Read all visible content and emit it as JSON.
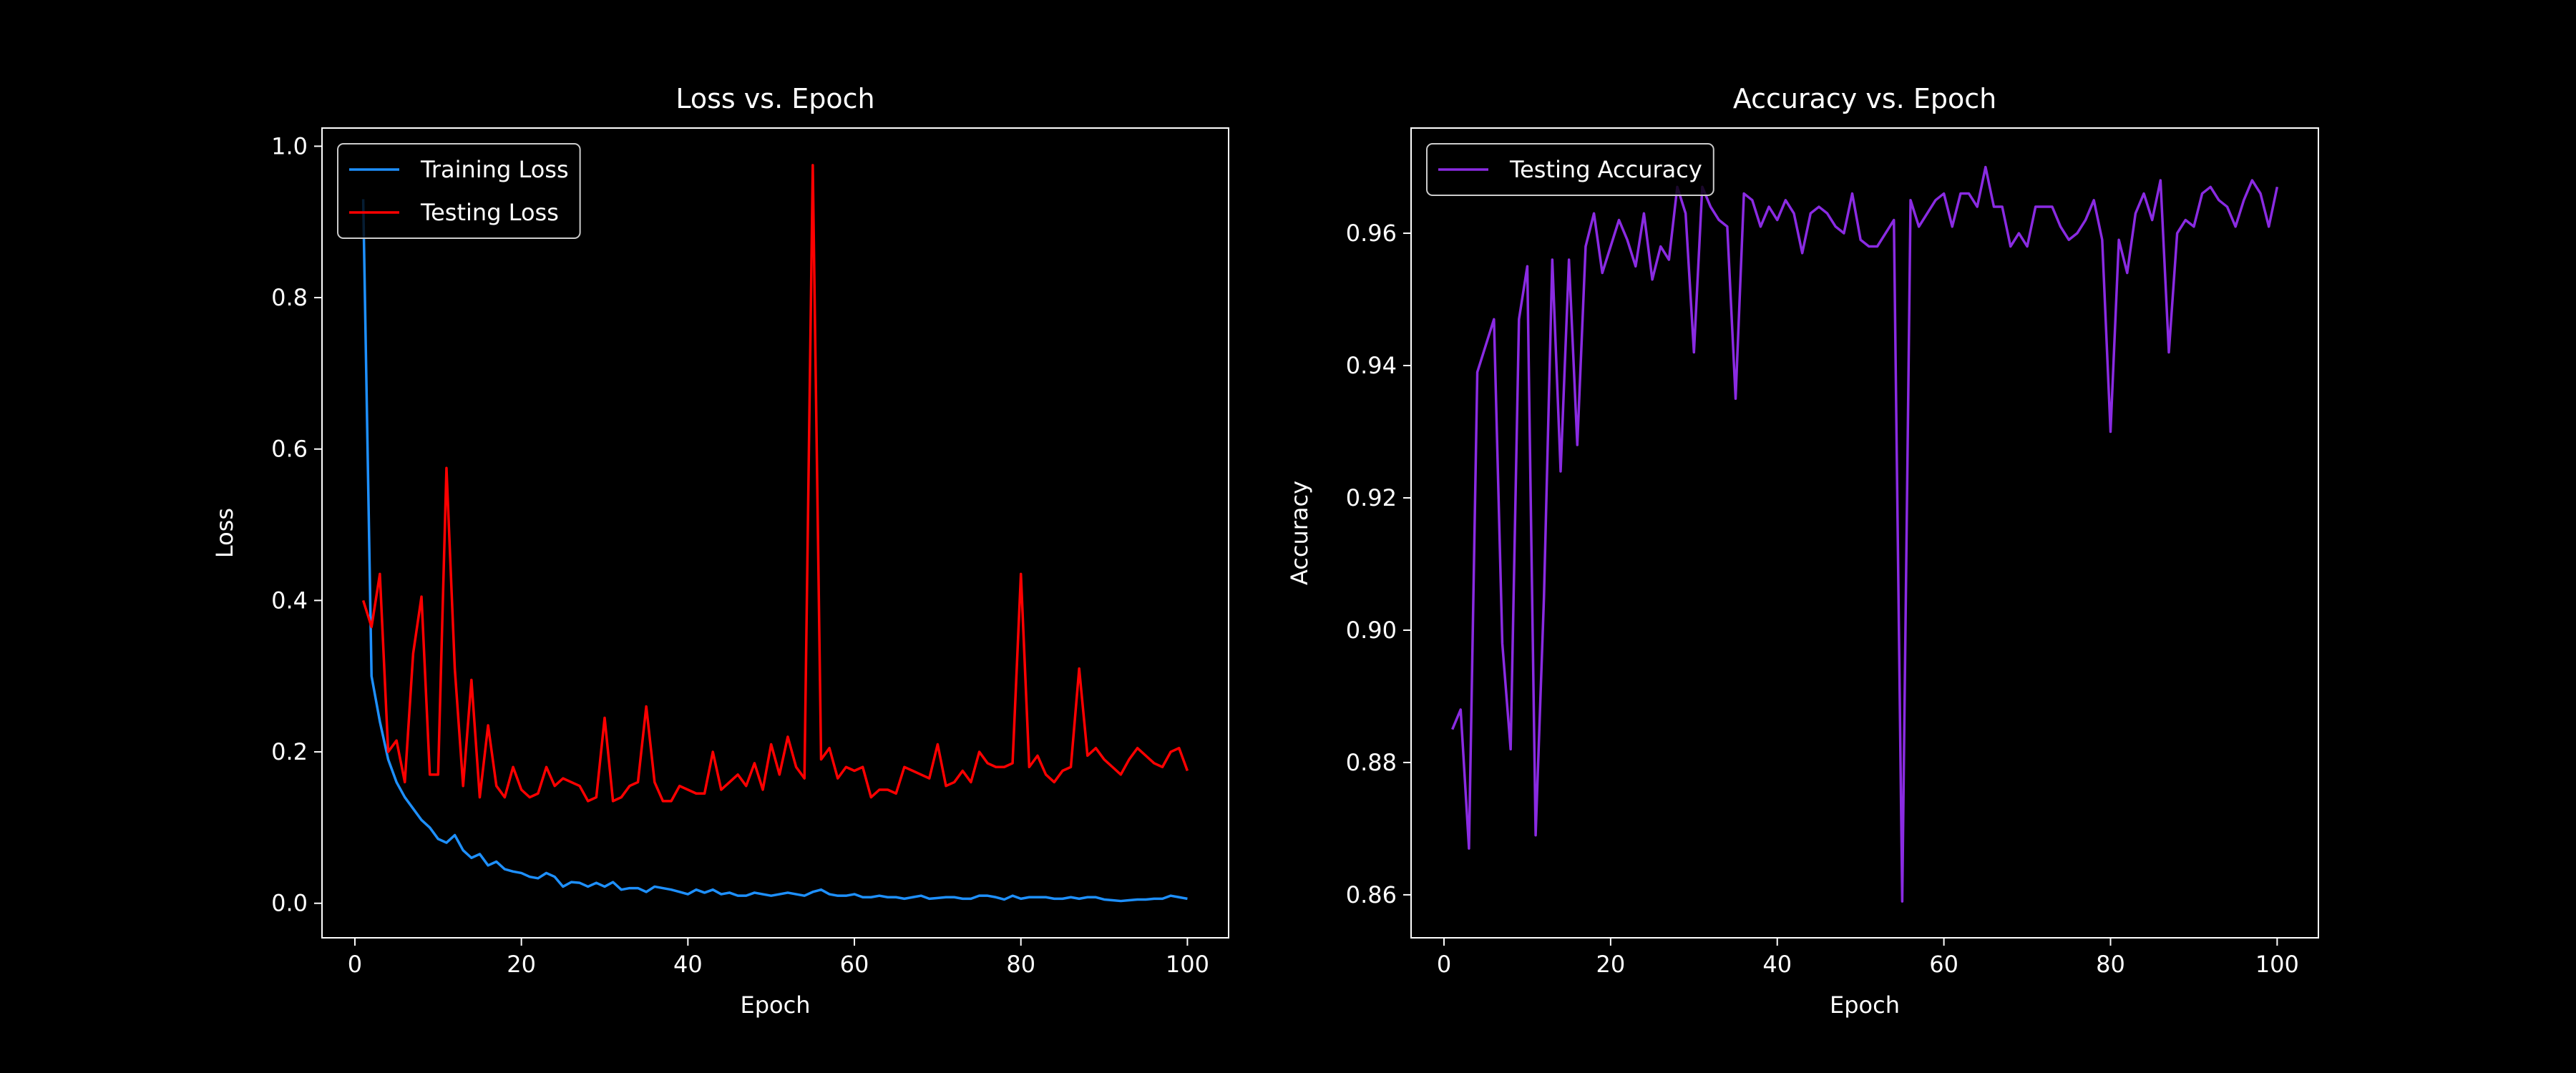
{
  "chart_data": [
    {
      "type": "line",
      "title": "Loss vs. Epoch",
      "xlabel": "Epoch",
      "ylabel": "Loss",
      "x": [
        1,
        2,
        3,
        4,
        5,
        6,
        7,
        8,
        9,
        10,
        11,
        12,
        13,
        14,
        15,
        16,
        17,
        18,
        19,
        20,
        21,
        22,
        23,
        24,
        25,
        26,
        27,
        28,
        29,
        30,
        31,
        32,
        33,
        34,
        35,
        36,
        37,
        38,
        39,
        40,
        41,
        42,
        43,
        44,
        45,
        46,
        47,
        48,
        49,
        50,
        51,
        52,
        53,
        54,
        55,
        56,
        57,
        58,
        59,
        60,
        61,
        62,
        63,
        64,
        65,
        66,
        67,
        68,
        69,
        70,
        71,
        72,
        73,
        74,
        75,
        76,
        77,
        78,
        79,
        80,
        81,
        82,
        83,
        84,
        85,
        86,
        87,
        88,
        89,
        90,
        91,
        92,
        93,
        94,
        95,
        96,
        97,
        98,
        99,
        100
      ],
      "series": [
        {
          "name": "Training Loss",
          "color": "#1e90ff",
          "values": [
            0.93,
            0.3,
            0.24,
            0.19,
            0.16,
            0.14,
            0.125,
            0.11,
            0.1,
            0.085,
            0.08,
            0.09,
            0.07,
            0.06,
            0.065,
            0.05,
            0.055,
            0.045,
            0.042,
            0.04,
            0.035,
            0.033,
            0.04,
            0.035,
            0.022,
            0.028,
            0.027,
            0.022,
            0.027,
            0.022,
            0.028,
            0.018,
            0.02,
            0.02,
            0.015,
            0.022,
            0.02,
            0.018,
            0.015,
            0.012,
            0.018,
            0.014,
            0.018,
            0.012,
            0.014,
            0.01,
            0.01,
            0.014,
            0.012,
            0.01,
            0.012,
            0.014,
            0.012,
            0.01,
            0.015,
            0.018,
            0.012,
            0.01,
            0.01,
            0.012,
            0.008,
            0.008,
            0.01,
            0.008,
            0.008,
            0.006,
            0.008,
            0.01,
            0.006,
            0.007,
            0.008,
            0.008,
            0.006,
            0.006,
            0.01,
            0.01,
            0.008,
            0.005,
            0.01,
            0.006,
            0.008,
            0.008,
            0.008,
            0.006,
            0.006,
            0.008,
            0.006,
            0.008,
            0.008,
            0.005,
            0.004,
            0.003,
            0.004,
            0.005,
            0.005,
            0.006,
            0.006,
            0.01,
            0.008,
            0.006
          ]
        },
        {
          "name": "Testing Loss",
          "color": "#ff0000",
          "values": [
            0.4,
            0.365,
            0.435,
            0.2,
            0.215,
            0.16,
            0.33,
            0.405,
            0.17,
            0.17,
            0.575,
            0.31,
            0.155,
            0.295,
            0.14,
            0.235,
            0.155,
            0.14,
            0.18,
            0.15,
            0.14,
            0.145,
            0.18,
            0.155,
            0.165,
            0.16,
            0.155,
            0.135,
            0.14,
            0.245,
            0.135,
            0.14,
            0.155,
            0.16,
            0.26,
            0.16,
            0.135,
            0.135,
            0.155,
            0.15,
            0.145,
            0.145,
            0.2,
            0.15,
            0.16,
            0.17,
            0.155,
            0.185,
            0.15,
            0.21,
            0.17,
            0.22,
            0.18,
            0.165,
            0.975,
            0.19,
            0.205,
            0.165,
            0.18,
            0.175,
            0.18,
            0.14,
            0.15,
            0.15,
            0.145,
            0.18,
            0.175,
            0.17,
            0.165,
            0.21,
            0.155,
            0.16,
            0.175,
            0.16,
            0.2,
            0.185,
            0.18,
            0.18,
            0.185,
            0.435,
            0.18,
            0.195,
            0.17,
            0.16,
            0.175,
            0.18,
            0.31,
            0.195,
            0.205,
            0.19,
            0.18,
            0.17,
            0.19,
            0.205,
            0.195,
            0.185,
            0.18,
            0.2,
            0.205,
            0.175
          ]
        }
      ],
      "xlim": [
        -3.95,
        104.95
      ],
      "ylim": [
        -0.0456,
        1.024
      ],
      "xticks": [
        0,
        20,
        40,
        60,
        80,
        100
      ],
      "yticks": [
        {
          "value": 0,
          "label": "0.0"
        },
        0.2,
        0.4,
        0.6,
        0.8,
        {
          "value": 1,
          "label": "1.0"
        }
      ],
      "legend": "upper left"
    },
    {
      "type": "line",
      "title": "Accuracy vs. Epoch",
      "xlabel": "Epoch",
      "ylabel": "Accuracy",
      "x": [
        1,
        2,
        3,
        4,
        5,
        6,
        7,
        8,
        9,
        10,
        11,
        12,
        13,
        14,
        15,
        16,
        17,
        18,
        19,
        20,
        21,
        22,
        23,
        24,
        25,
        26,
        27,
        28,
        29,
        30,
        31,
        32,
        33,
        34,
        35,
        36,
        37,
        38,
        39,
        40,
        41,
        42,
        43,
        44,
        45,
        46,
        47,
        48,
        49,
        50,
        51,
        52,
        53,
        54,
        55,
        56,
        57,
        58,
        59,
        60,
        61,
        62,
        63,
        64,
        65,
        66,
        67,
        68,
        69,
        70,
        71,
        72,
        73,
        74,
        75,
        76,
        77,
        78,
        79,
        80,
        81,
        82,
        83,
        84,
        85,
        86,
        87,
        88,
        89,
        90,
        91,
        92,
        93,
        94,
        95,
        96,
        97,
        98,
        99,
        100
      ],
      "series": [
        {
          "name": "Testing Accuracy",
          "color": "#8a2be2",
          "values": [
            0.885,
            0.888,
            0.867,
            0.939,
            0.943,
            0.947,
            0.898,
            0.882,
            0.947,
            0.955,
            0.869,
            0.905,
            0.956,
            0.924,
            0.956,
            0.928,
            0.958,
            0.963,
            0.954,
            0.958,
            0.962,
            0.959,
            0.955,
            0.963,
            0.953,
            0.958,
            0.956,
            0.967,
            0.963,
            0.942,
            0.967,
            0.964,
            0.962,
            0.961,
            0.935,
            0.966,
            0.965,
            0.961,
            0.964,
            0.962,
            0.965,
            0.963,
            0.957,
            0.963,
            0.964,
            0.963,
            0.961,
            0.96,
            0.966,
            0.959,
            0.958,
            0.958,
            0.96,
            0.962,
            0.859,
            0.965,
            0.961,
            0.963,
            0.965,
            0.966,
            0.961,
            0.966,
            0.966,
            0.964,
            0.97,
            0.964,
            0.964,
            0.958,
            0.96,
            0.958,
            0.964,
            0.964,
            0.964,
            0.961,
            0.959,
            0.96,
            0.962,
            0.965,
            0.959,
            0.93,
            0.959,
            0.954,
            0.963,
            0.966,
            0.962,
            0.968,
            0.942,
            0.96,
            0.962,
            0.961,
            0.966,
            0.967,
            0.965,
            0.964,
            0.961,
            0.965,
            0.968,
            0.966,
            0.961,
            0.967
          ]
        }
      ],
      "xlim": [
        -3.95,
        104.95
      ],
      "ylim": [
        0.8535,
        0.9759
      ],
      "xticks": [
        0,
        20,
        40,
        60,
        80,
        100
      ],
      "yticks": [
        0.86,
        0.88,
        {
          "value": 0.9,
          "label": "0.90"
        },
        0.92,
        0.94,
        0.96
      ],
      "legend": "upper left"
    }
  ]
}
